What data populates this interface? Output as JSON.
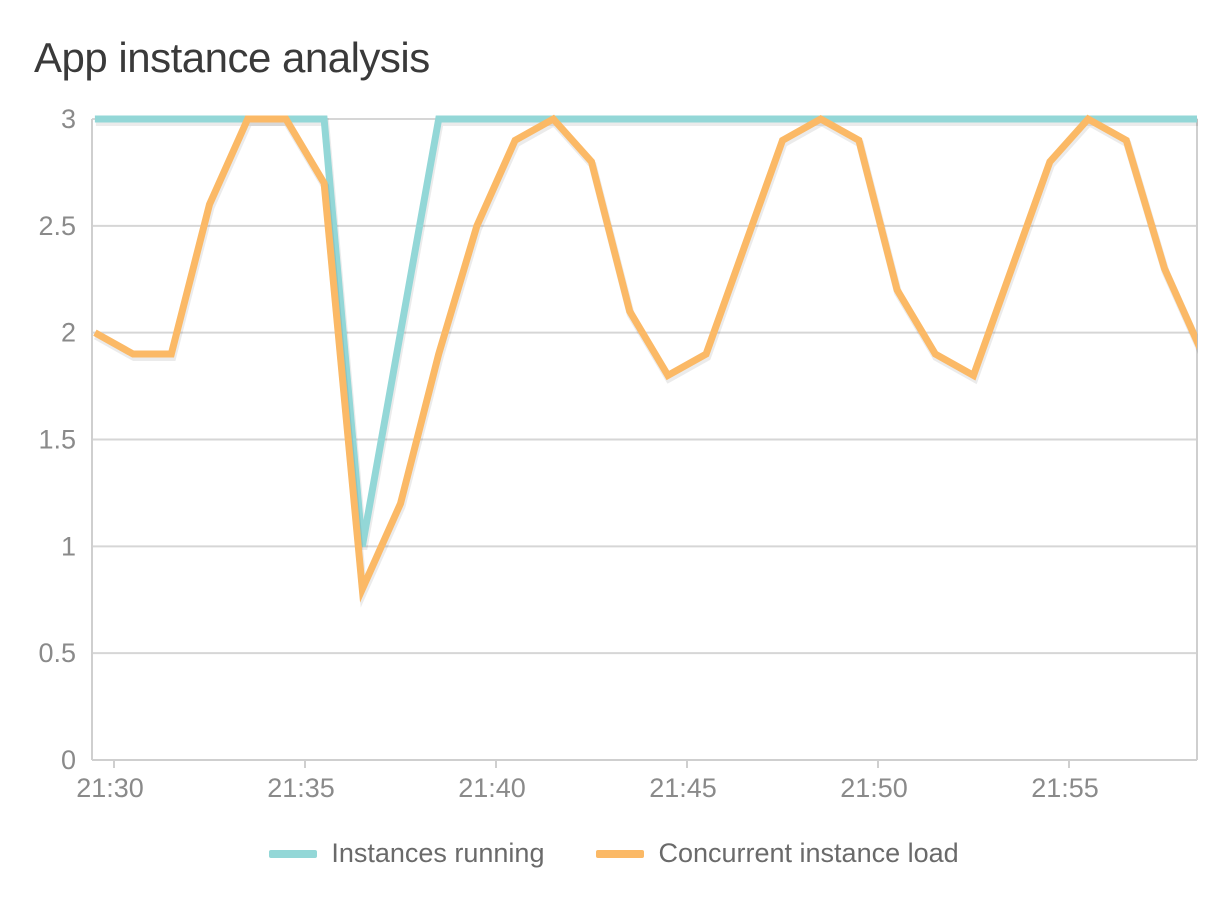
{
  "chart_data": {
    "type": "line",
    "title": "App instance analysis",
    "xlabel": "",
    "ylabel": "",
    "ylim": [
      0,
      3
    ],
    "yticks": [
      "0",
      "0.5",
      "1",
      "1.5",
      "2",
      "2.5",
      "3"
    ],
    "xticks": [
      "21:30",
      "21:35",
      "21:40",
      "21:45",
      "21:50",
      "21:55"
    ],
    "x_unit": "time (HH:MM)",
    "grid": true,
    "legend_position": "bottom",
    "series": [
      {
        "name": "Instances running",
        "color": "#93d7d7",
        "points": [
          [
            "21:29.5",
            3
          ],
          [
            "21:30.5",
            3
          ],
          [
            "21:31.5",
            3
          ],
          [
            "21:32.5",
            3
          ],
          [
            "21:33.5",
            3
          ],
          [
            "21:34.5",
            3
          ],
          [
            "21:35.5",
            3
          ],
          [
            "21:36.5",
            1
          ],
          [
            "21:37.5",
            2
          ],
          [
            "21:38.5",
            3
          ],
          [
            "21:39.5",
            3
          ],
          [
            "21:40.5",
            3
          ],
          [
            "21:41.5",
            3
          ],
          [
            "21:42.5",
            3
          ],
          [
            "21:43.5",
            3
          ],
          [
            "21:44.5",
            3
          ],
          [
            "21:45.5",
            3
          ],
          [
            "21:46.5",
            3
          ],
          [
            "21:47.5",
            3
          ],
          [
            "21:48.5",
            3
          ],
          [
            "21:49.5",
            3
          ],
          [
            "21:50.5",
            3
          ],
          [
            "21:51.5",
            3
          ],
          [
            "21:52.5",
            3
          ],
          [
            "21:53.5",
            3
          ],
          [
            "21:54.5",
            3
          ],
          [
            "21:55.5",
            3
          ],
          [
            "21:56.5",
            3
          ],
          [
            "21:57.5",
            3
          ],
          [
            "21:58.5",
            3
          ]
        ]
      },
      {
        "name": "Concurrent instance load",
        "color": "#fbb966",
        "points": [
          [
            "21:29.5",
            2.0
          ],
          [
            "21:30.5",
            1.9
          ],
          [
            "21:31.5",
            1.9
          ],
          [
            "21:32.5",
            2.6
          ],
          [
            "21:33.5",
            3.0
          ],
          [
            "21:34.5",
            3.0
          ],
          [
            "21:35.5",
            2.7
          ],
          [
            "21:36.5",
            0.8
          ],
          [
            "21:37.5",
            1.2
          ],
          [
            "21:38.5",
            1.9
          ],
          [
            "21:39.5",
            2.5
          ],
          [
            "21:40.5",
            2.9
          ],
          [
            "21:41.5",
            3.0
          ],
          [
            "21:42.5",
            2.8
          ],
          [
            "21:43.5",
            2.1
          ],
          [
            "21:44.5",
            1.8
          ],
          [
            "21:45.5",
            1.9
          ],
          [
            "21:46.5",
            2.4
          ],
          [
            "21:47.5",
            2.9
          ],
          [
            "21:48.5",
            3.0
          ],
          [
            "21:49.5",
            2.9
          ],
          [
            "21:50.5",
            2.2
          ],
          [
            "21:51.5",
            1.9
          ],
          [
            "21:52.5",
            1.8
          ],
          [
            "21:53.5",
            2.3
          ],
          [
            "21:54.5",
            2.8
          ],
          [
            "21:55.5",
            3.0
          ],
          [
            "21:56.5",
            2.9
          ],
          [
            "21:57.5",
            2.3
          ],
          [
            "21:58.5",
            1.9
          ]
        ]
      }
    ]
  },
  "colors": {
    "grid": "#d6d6d6",
    "axis": "#cfcfcf",
    "tick_text": "#8a8a8a",
    "title_text": "#3a3a3a"
  }
}
